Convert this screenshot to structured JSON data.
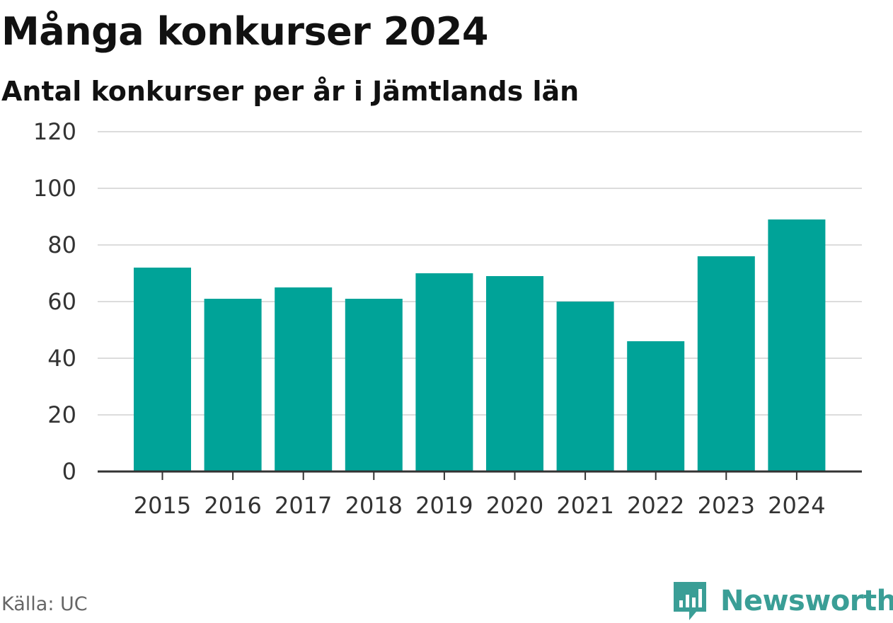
{
  "chart_data": {
    "type": "bar",
    "title": "Många konkurser 2024",
    "subtitle": "Antal konkurser per år i Jämtlands län",
    "categories": [
      "2015",
      "2016",
      "2017",
      "2018",
      "2019",
      "2020",
      "2021",
      "2022",
      "2023",
      "2024"
    ],
    "values": [
      72,
      61,
      65,
      61,
      70,
      69,
      60,
      46,
      76,
      89
    ],
    "ylim": [
      0,
      120
    ],
    "yticks": [
      0,
      20,
      40,
      60,
      80,
      100,
      120
    ],
    "xlabel": "",
    "ylabel": "",
    "grid": true,
    "bar_color": "#00a398"
  },
  "footer": {
    "source": "Källa: UC",
    "brand": "Newsworthy"
  },
  "icons": {
    "brand_logo": "newsworthy-logo-icon"
  }
}
